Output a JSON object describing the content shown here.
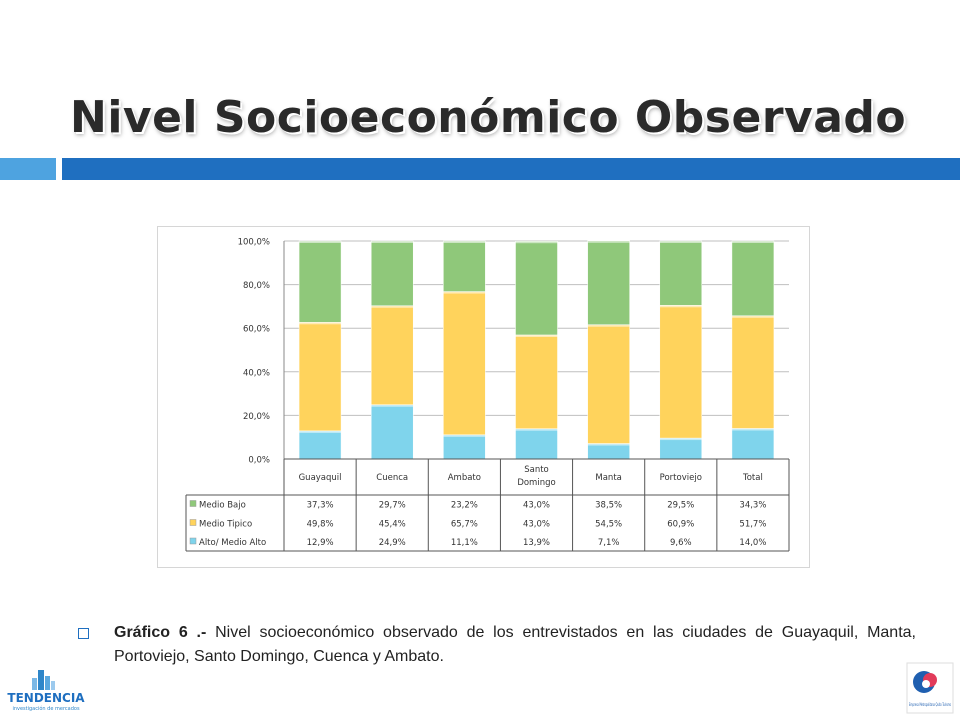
{
  "slide": {
    "title": "Nivel Socioeconómico Observado",
    "caption_label": "Gráfico 6 .-",
    "caption_text": "Nivel socioeconómico observado de los entrevistados en las ciudades de Guayaquil, Manta, Portoviejo, Santo Domingo, Cuenca y Ambato."
  },
  "logos": {
    "left_name": "TENDENCIA",
    "left_tagline": "investigación de mercados",
    "right_text": "Empresa Metropolitana Quito Turismo"
  },
  "colors": {
    "title_bar_light": "#4ea3e0",
    "title_bar_dark": "#1f6fc0",
    "series_medio_bajo": "#8fc87a",
    "series_medio_tipico": "#ffd35c",
    "series_alto": "#7fd4ec"
  },
  "chart_data": {
    "type": "bar",
    "stacked": true,
    "categories": [
      "Guayaquil",
      "Cuenca",
      "Ambato",
      "Santo Domingo",
      "Manta",
      "Portoviejo",
      "Total"
    ],
    "series": [
      {
        "name": "Alto/ Medio Alto",
        "values": [
          12.9,
          24.9,
          11.1,
          13.9,
          7.1,
          9.6,
          14.0
        ],
        "labels": [
          "12,9%",
          "24,9%",
          "11,1%",
          "13,9%",
          "7,1%",
          "9,6%",
          "14,0%"
        ]
      },
      {
        "name": "Medio Tipico",
        "values": [
          49.8,
          45.4,
          65.7,
          43.0,
          54.5,
          60.9,
          51.7
        ],
        "labels": [
          "49,8%",
          "45,4%",
          "65,7%",
          "43,0%",
          "54,5%",
          "60,9%",
          "51,7%"
        ]
      },
      {
        "name": "Medio Bajo",
        "values": [
          37.3,
          29.7,
          23.2,
          43.0,
          38.5,
          29.5,
          34.3
        ],
        "labels": [
          "37,3%",
          "29,7%",
          "23,2%",
          "43,0%",
          "38,5%",
          "29,5%",
          "34,3%"
        ]
      }
    ],
    "table_order": [
      "Medio Bajo",
      "Medio Tipico",
      "Alto/ Medio Alto"
    ],
    "ylim": [
      0,
      100
    ],
    "yticks": [
      "0,0%",
      "20,0%",
      "40,0%",
      "60,0%",
      "80,0%",
      "100,0%"
    ],
    "grid": true,
    "legend": "data-table"
  }
}
